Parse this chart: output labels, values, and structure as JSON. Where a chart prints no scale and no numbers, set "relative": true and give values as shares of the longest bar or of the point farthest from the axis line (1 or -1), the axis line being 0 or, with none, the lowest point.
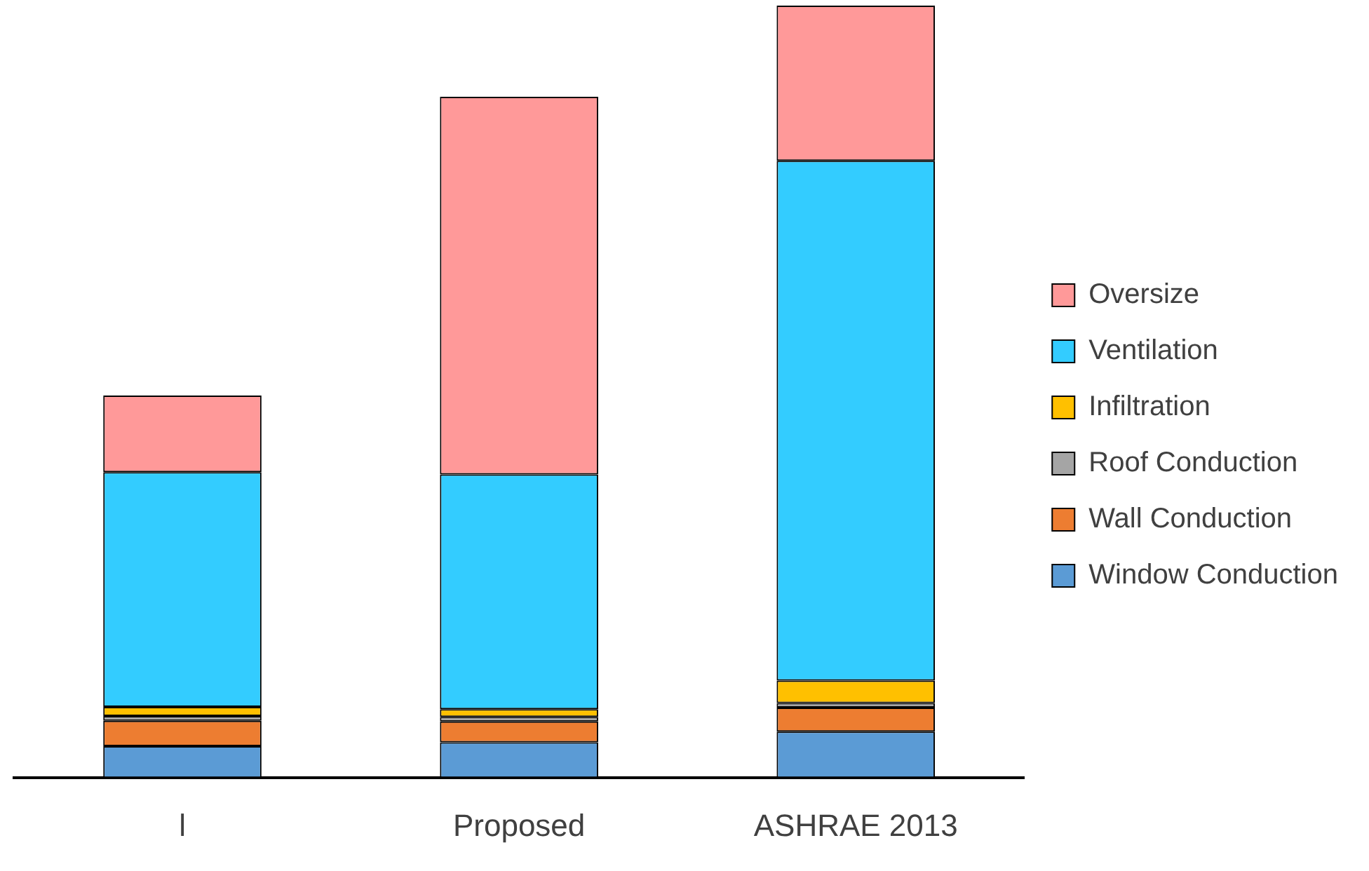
{
  "chart_data": {
    "type": "bar",
    "stacked": true,
    "relative": true,
    "legend": "right",
    "categories": [
      "l",
      "Proposed",
      "ASHRAE 2013"
    ],
    "series": [
      {
        "name": "Window Conduction",
        "color": "#5b9bd5",
        "values": [
          0.041,
          0.046,
          0.06
        ]
      },
      {
        "name": "Wall Conduction",
        "color": "#ed7d31",
        "values": [
          0.033,
          0.027,
          0.031
        ]
      },
      {
        "name": "Roof Conduction",
        "color": "#a5a5a5",
        "values": [
          0.006,
          0.006,
          0.006
        ]
      },
      {
        "name": "Infiltration",
        "color": "#ffc000",
        "values": [
          0.012,
          0.01,
          0.029
        ]
      },
      {
        "name": "Ventilation",
        "color": "#33ccff",
        "values": [
          0.304,
          0.304,
          0.673
        ]
      },
      {
        "name": "Oversize",
        "color": "#ff9999",
        "values": [
          0.099,
          0.489,
          0.201
        ]
      }
    ]
  }
}
